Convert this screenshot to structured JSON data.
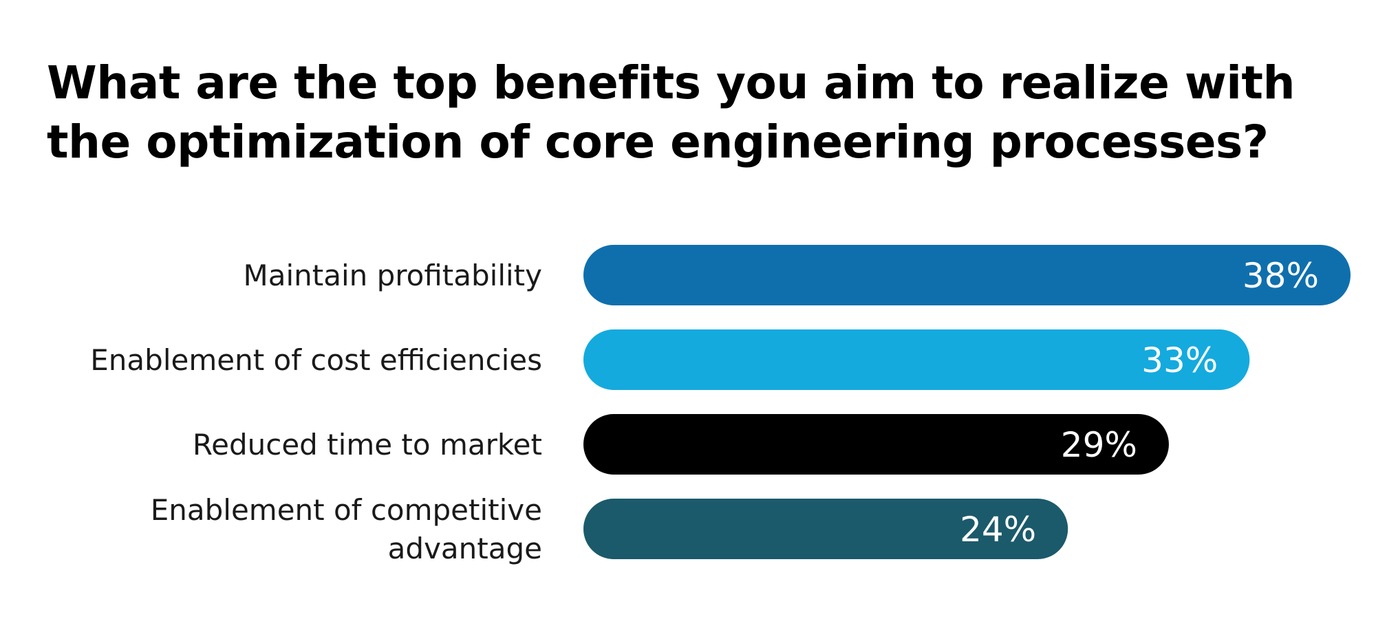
{
  "chart_data": {
    "type": "bar",
    "orientation": "horizontal",
    "title": "What are the top benefits you aim to realize with the optimization of core engineering processes?",
    "categories": [
      "Maintain profitability",
      "Enablement of cost efficiencies",
      "Reduced time to market",
      "Enablement of competitive advantage"
    ],
    "category_lines": [
      [
        "Maintain profitability"
      ],
      [
        "Enablement of cost efficiencies"
      ],
      [
        "Reduced time to market"
      ],
      [
        "Enablement of competitive",
        "advantage"
      ]
    ],
    "values": [
      38,
      33,
      29,
      24
    ],
    "value_labels": [
      "38%",
      "33%",
      "29%",
      "24%"
    ],
    "bar_colors": [
      "#0f6fad",
      "#14aade",
      "#000000",
      "#1b5a6b"
    ],
    "xlim": [
      0,
      38
    ],
    "grid": false,
    "legend": "none"
  }
}
